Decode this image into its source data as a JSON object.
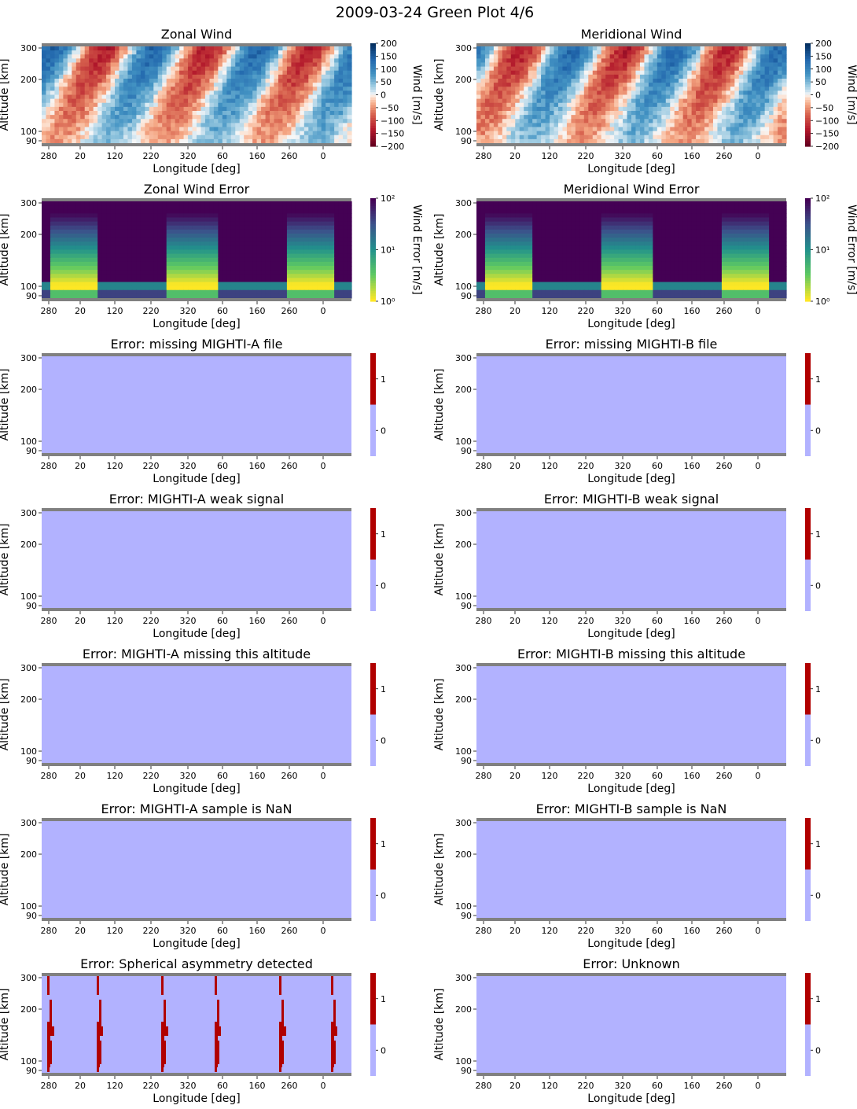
{
  "figure": {
    "title": "2009-03-24 Green Plot 4/6"
  },
  "colors": {
    "band_gray": "#808080",
    "flag_zero": "#b2b2ff",
    "flag_one": "#b00000",
    "wind_negative": "#67001f",
    "wind_positive": "#053061",
    "error_high": "#440154",
    "error_low": "#fde725"
  },
  "chart_data": [
    {
      "id": "zonal-wind",
      "type": "heatmap",
      "title": "Zonal Wind",
      "xlabel": "Longitude [deg]",
      "ylabel": "Altitude [km]",
      "x_ticks": [
        "280",
        "20",
        "120",
        "220",
        "320",
        "60",
        "160",
        "260",
        "0"
      ],
      "y_ticks": [
        "300",
        "200",
        "100",
        "90"
      ],
      "colorbar": {
        "label": "Wind [m/s]",
        "scale": "linear",
        "colormap": "RdBu",
        "range": [
          -200,
          200
        ],
        "ticks": [
          "200",
          "150",
          "100",
          "50",
          "0",
          "−50",
          "−100",
          "−150",
          "−200"
        ]
      },
      "pattern": "wind",
      "seed": 1
    },
    {
      "id": "meridional-wind",
      "type": "heatmap",
      "title": "Meridional Wind",
      "xlabel": "Longitude [deg]",
      "ylabel": "Altitude [km]",
      "x_ticks": [
        "280",
        "20",
        "120",
        "220",
        "320",
        "60",
        "160",
        "260",
        "0"
      ],
      "y_ticks": [
        "300",
        "200",
        "100",
        "90"
      ],
      "colorbar": {
        "label": "Wind [m/s]",
        "scale": "linear",
        "colormap": "RdBu",
        "range": [
          -200,
          200
        ],
        "ticks": [
          "200",
          "150",
          "100",
          "50",
          "0",
          "−50",
          "−100",
          "−150",
          "−200"
        ]
      },
      "pattern": "wind",
      "seed": 2
    },
    {
      "id": "zonal-wind-error",
      "type": "heatmap",
      "title": "Zonal Wind Error",
      "xlabel": "Longitude [deg]",
      "ylabel": "Altitude [km]",
      "x_ticks": [
        "280",
        "20",
        "120",
        "220",
        "320",
        "60",
        "160",
        "260",
        "0"
      ],
      "y_ticks": [
        "300",
        "200",
        "100",
        "90"
      ],
      "colorbar": {
        "label": "Wind Error [m/s]",
        "scale": "log",
        "colormap": "viridis_r",
        "range": [
          1,
          100
        ],
        "ticks": [
          "10²",
          "10¹",
          "10⁰"
        ]
      },
      "pattern": "error"
    },
    {
      "id": "meridional-wind-error",
      "type": "heatmap",
      "title": "Meridional Wind Error",
      "xlabel": "Longitude [deg]",
      "ylabel": "Altitude [km]",
      "x_ticks": [
        "280",
        "20",
        "120",
        "220",
        "320",
        "60",
        "160",
        "260",
        "0"
      ],
      "y_ticks": [
        "300",
        "200",
        "100",
        "90"
      ],
      "colorbar": {
        "label": "Wind Error [m/s]",
        "scale": "log",
        "colormap": "viridis_r",
        "range": [
          1,
          100
        ],
        "ticks": [
          "10²",
          "10¹",
          "10⁰"
        ]
      },
      "pattern": "error"
    },
    {
      "id": "missing-a-file",
      "type": "heatmap",
      "title": "Error: missing MIGHTI-A file",
      "xlabel": "Longitude [deg]",
      "ylabel": "Altitude [km]",
      "x_ticks": [
        "280",
        "20",
        "120",
        "220",
        "320",
        "60",
        "160",
        "260",
        "0"
      ],
      "y_ticks": [
        "300",
        "200",
        "100",
        "90"
      ],
      "colorbar": {
        "label": "",
        "scale": "binary",
        "ticks": [
          "1",
          "0"
        ]
      },
      "pattern": "flag",
      "flag_value": 0
    },
    {
      "id": "missing-b-file",
      "type": "heatmap",
      "title": "Error: missing MIGHTI-B file",
      "xlabel": "Longitude [deg]",
      "ylabel": "Altitude [km]",
      "x_ticks": [
        "280",
        "20",
        "120",
        "220",
        "320",
        "60",
        "160",
        "260",
        "0"
      ],
      "y_ticks": [
        "300",
        "200",
        "100",
        "90"
      ],
      "colorbar": {
        "label": "",
        "scale": "binary",
        "ticks": [
          "1",
          "0"
        ]
      },
      "pattern": "flag",
      "flag_value": 0
    },
    {
      "id": "a-weak-signal",
      "type": "heatmap",
      "title": "Error: MIGHTI-A weak signal",
      "xlabel": "Longitude [deg]",
      "ylabel": "Altitude [km]",
      "x_ticks": [
        "280",
        "20",
        "120",
        "220",
        "320",
        "60",
        "160",
        "260",
        "0"
      ],
      "y_ticks": [
        "300",
        "200",
        "100",
        "90"
      ],
      "colorbar": {
        "label": "",
        "scale": "binary",
        "ticks": [
          "1",
          "0"
        ]
      },
      "pattern": "flag",
      "flag_value": 0
    },
    {
      "id": "b-weak-signal",
      "type": "heatmap",
      "title": "Error: MIGHTI-B weak signal",
      "xlabel": "Longitude [deg]",
      "ylabel": "Altitude [km]",
      "x_ticks": [
        "280",
        "20",
        "120",
        "220",
        "320",
        "60",
        "160",
        "260",
        "0"
      ],
      "y_ticks": [
        "300",
        "200",
        "100",
        "90"
      ],
      "colorbar": {
        "label": "",
        "scale": "binary",
        "ticks": [
          "1",
          "0"
        ]
      },
      "pattern": "flag",
      "flag_value": 0
    },
    {
      "id": "a-missing-altitude",
      "type": "heatmap",
      "title": "Error: MIGHTI-A missing this altitude",
      "xlabel": "Longitude [deg]",
      "ylabel": "Altitude [km]",
      "x_ticks": [
        "280",
        "20",
        "120",
        "220",
        "320",
        "60",
        "160",
        "260",
        "0"
      ],
      "y_ticks": [
        "300",
        "200",
        "100",
        "90"
      ],
      "colorbar": {
        "label": "",
        "scale": "binary",
        "ticks": [
          "1",
          "0"
        ]
      },
      "pattern": "flag",
      "flag_value": 0
    },
    {
      "id": "b-missing-altitude",
      "type": "heatmap",
      "title": "Error: MIGHTI-B missing this altitude",
      "xlabel": "Longitude [deg]",
      "ylabel": "Altitude [km]",
      "x_ticks": [
        "280",
        "20",
        "120",
        "220",
        "320",
        "60",
        "160",
        "260",
        "0"
      ],
      "y_ticks": [
        "300",
        "200",
        "100",
        "90"
      ],
      "colorbar": {
        "label": "",
        "scale": "binary",
        "ticks": [
          "1",
          "0"
        ]
      },
      "pattern": "flag",
      "flag_value": 0
    },
    {
      "id": "a-sample-nan",
      "type": "heatmap",
      "title": "Error: MIGHTI-A sample is NaN",
      "xlabel": "Longitude [deg]",
      "ylabel": "Altitude [km]",
      "x_ticks": [
        "280",
        "20",
        "120",
        "220",
        "320",
        "60",
        "160",
        "260",
        "0"
      ],
      "y_ticks": [
        "300",
        "200",
        "100",
        "90"
      ],
      "colorbar": {
        "label": "",
        "scale": "binary",
        "ticks": [
          "1",
          "0"
        ]
      },
      "pattern": "flag",
      "flag_value": 0
    },
    {
      "id": "b-sample-nan",
      "type": "heatmap",
      "title": "Error: MIGHTI-B sample is NaN",
      "xlabel": "Longitude [deg]",
      "ylabel": "Altitude [km]",
      "x_ticks": [
        "280",
        "20",
        "120",
        "220",
        "320",
        "60",
        "160",
        "260",
        "0"
      ],
      "y_ticks": [
        "300",
        "200",
        "100",
        "90"
      ],
      "colorbar": {
        "label": "",
        "scale": "binary",
        "ticks": [
          "1",
          "0"
        ]
      },
      "pattern": "flag",
      "flag_value": 0
    },
    {
      "id": "spherical-asymmetry",
      "type": "heatmap",
      "title": "Error: Spherical asymmetry detected",
      "xlabel": "Longitude [deg]",
      "ylabel": "Altitude [km]",
      "x_ticks": [
        "280",
        "20",
        "120",
        "220",
        "320",
        "60",
        "160",
        "260",
        "0"
      ],
      "y_ticks": [
        "300",
        "200",
        "100",
        "90"
      ],
      "colorbar": {
        "label": "",
        "scale": "binary",
        "ticks": [
          "1",
          "0"
        ]
      },
      "pattern": "asymmetry",
      "flag_value": 0
    },
    {
      "id": "unknown",
      "type": "heatmap",
      "title": "Error: Unknown",
      "xlabel": "Longitude [deg]",
      "ylabel": "Altitude [km]",
      "x_ticks": [
        "280",
        "20",
        "120",
        "220",
        "320",
        "60",
        "160",
        "260",
        "0"
      ],
      "y_ticks": [
        "300",
        "200",
        "100",
        "90"
      ],
      "colorbar": {
        "label": "",
        "scale": "binary",
        "ticks": [
          "1",
          "0"
        ]
      },
      "pattern": "flag",
      "flag_value": 0
    }
  ]
}
